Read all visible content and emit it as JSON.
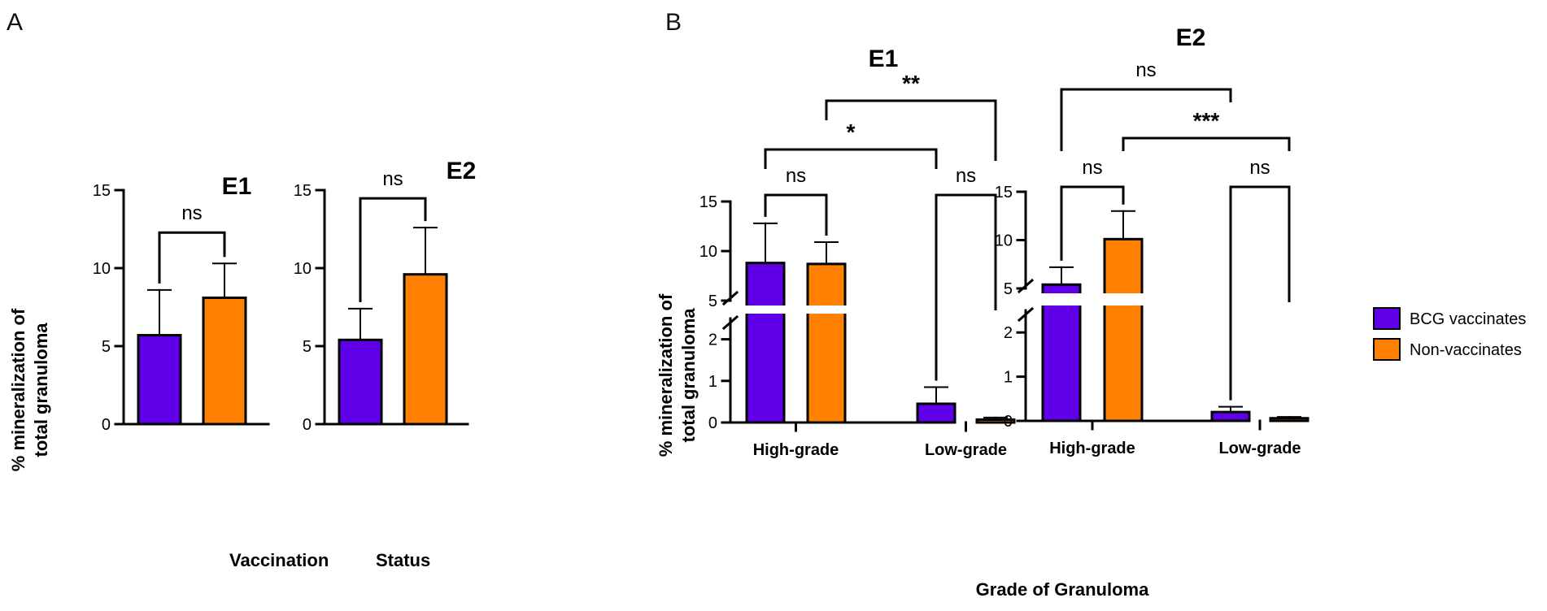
{
  "colors": {
    "bcg": "#6000e8",
    "non": "#ff7f00",
    "axis": "#000000"
  },
  "legend": [
    {
      "name": "BCG vaccinates",
      "color": "#6000e8"
    },
    {
      "name": "Non-vaccinates",
      "color": "#ff7f00"
    }
  ],
  "chart_data": [
    {
      "panel": "A",
      "type": "bar",
      "title": "E1",
      "ylabel_lines": [
        "% mineralization of",
        "total granuloma"
      ],
      "ylim": [
        0,
        15
      ],
      "yticks": [
        0,
        5,
        10,
        15
      ],
      "series": [
        {
          "name": "BCG vaccinates",
          "value": 5.7,
          "error": 2.9
        },
        {
          "name": "Non-vaccinates",
          "value": 8.1,
          "error": 2.2
        }
      ],
      "comparisons": [
        {
          "between": [
            0,
            1
          ],
          "label": "ns"
        }
      ]
    },
    {
      "panel": "A",
      "type": "bar",
      "title": "E2",
      "ylim": [
        0,
        15
      ],
      "yticks": [
        0,
        5,
        10,
        15
      ],
      "series": [
        {
          "name": "BCG vaccinates",
          "value": 5.4,
          "error": 2.0
        },
        {
          "name": "Non-vaccinates",
          "value": 9.6,
          "error": 3.0
        }
      ],
      "comparisons": [
        {
          "between": [
            0,
            1
          ],
          "label": "ns"
        }
      ]
    },
    {
      "panel": "B",
      "type": "bar",
      "title": "E1",
      "ylabel_lines": [
        "% mineralization of",
        "total granuloma"
      ],
      "broken_axis": {
        "lower": [
          0,
          2.5
        ],
        "upper": [
          5,
          15
        ]
      },
      "yticks_lower": [
        0,
        1,
        2
      ],
      "yticks_upper": [
        5,
        10,
        15
      ],
      "categories": [
        "High-grade",
        "Low-grade"
      ],
      "series": [
        {
          "name": "BCG vaccinates",
          "values": [
            8.8,
            0.45
          ],
          "errors": [
            4.0,
            0.4
          ]
        },
        {
          "name": "Non-vaccinates",
          "values": [
            8.7,
            0.07
          ],
          "errors": [
            2.2,
            0.05
          ]
        }
      ],
      "comparisons": [
        {
          "between": [
            "High-grade BCG vaccinates",
            "High-grade Non-vaccinates"
          ],
          "label": "ns"
        },
        {
          "between": [
            "Low-grade BCG vaccinates",
            "Low-grade Non-vaccinates"
          ],
          "label": "ns"
        },
        {
          "between": [
            "High-grade BCG vaccinates",
            "Low-grade BCG vaccinates"
          ],
          "label": "*"
        },
        {
          "between": [
            "High-grade Non-vaccinates",
            "Low-grade Non-vaccinates"
          ],
          "label": "**"
        }
      ]
    },
    {
      "panel": "B",
      "type": "bar",
      "title": "E2",
      "broken_axis": {
        "lower": [
          0,
          2.5
        ],
        "upper": [
          5,
          15
        ]
      },
      "yticks_lower": [
        0,
        1,
        2
      ],
      "yticks_upper": [
        5,
        10,
        15
      ],
      "categories": [
        "High-grade",
        "Low-grade"
      ],
      "series": [
        {
          "name": "BCG vaccinates",
          "values": [
            5.4,
            0.2
          ],
          "errors": [
            1.8,
            0.12
          ]
        },
        {
          "name": "Non-vaccinates",
          "values": [
            10.1,
            0.06
          ],
          "errors": [
            2.9,
            0.03
          ]
        }
      ],
      "comparisons": [
        {
          "between": [
            "High-grade BCG vaccinates",
            "High-grade Non-vaccinates"
          ],
          "label": "ns"
        },
        {
          "between": [
            "Low-grade BCG vaccinates",
            "Low-grade Non-vaccinates"
          ],
          "label": "ns"
        },
        {
          "between": [
            "High-grade BCG vaccinates",
            "Low-grade BCG vaccinates"
          ],
          "label": "ns"
        },
        {
          "between": [
            "High-grade Non-vaccinates",
            "Low-grade Non-vaccinates"
          ],
          "label": "***"
        }
      ]
    }
  ],
  "panel_a": {
    "letter": "A",
    "xlabel_words": [
      "Vaccination",
      "Status"
    ]
  },
  "panel_b": {
    "letter": "B",
    "xlabel": "Grade of Granuloma"
  }
}
